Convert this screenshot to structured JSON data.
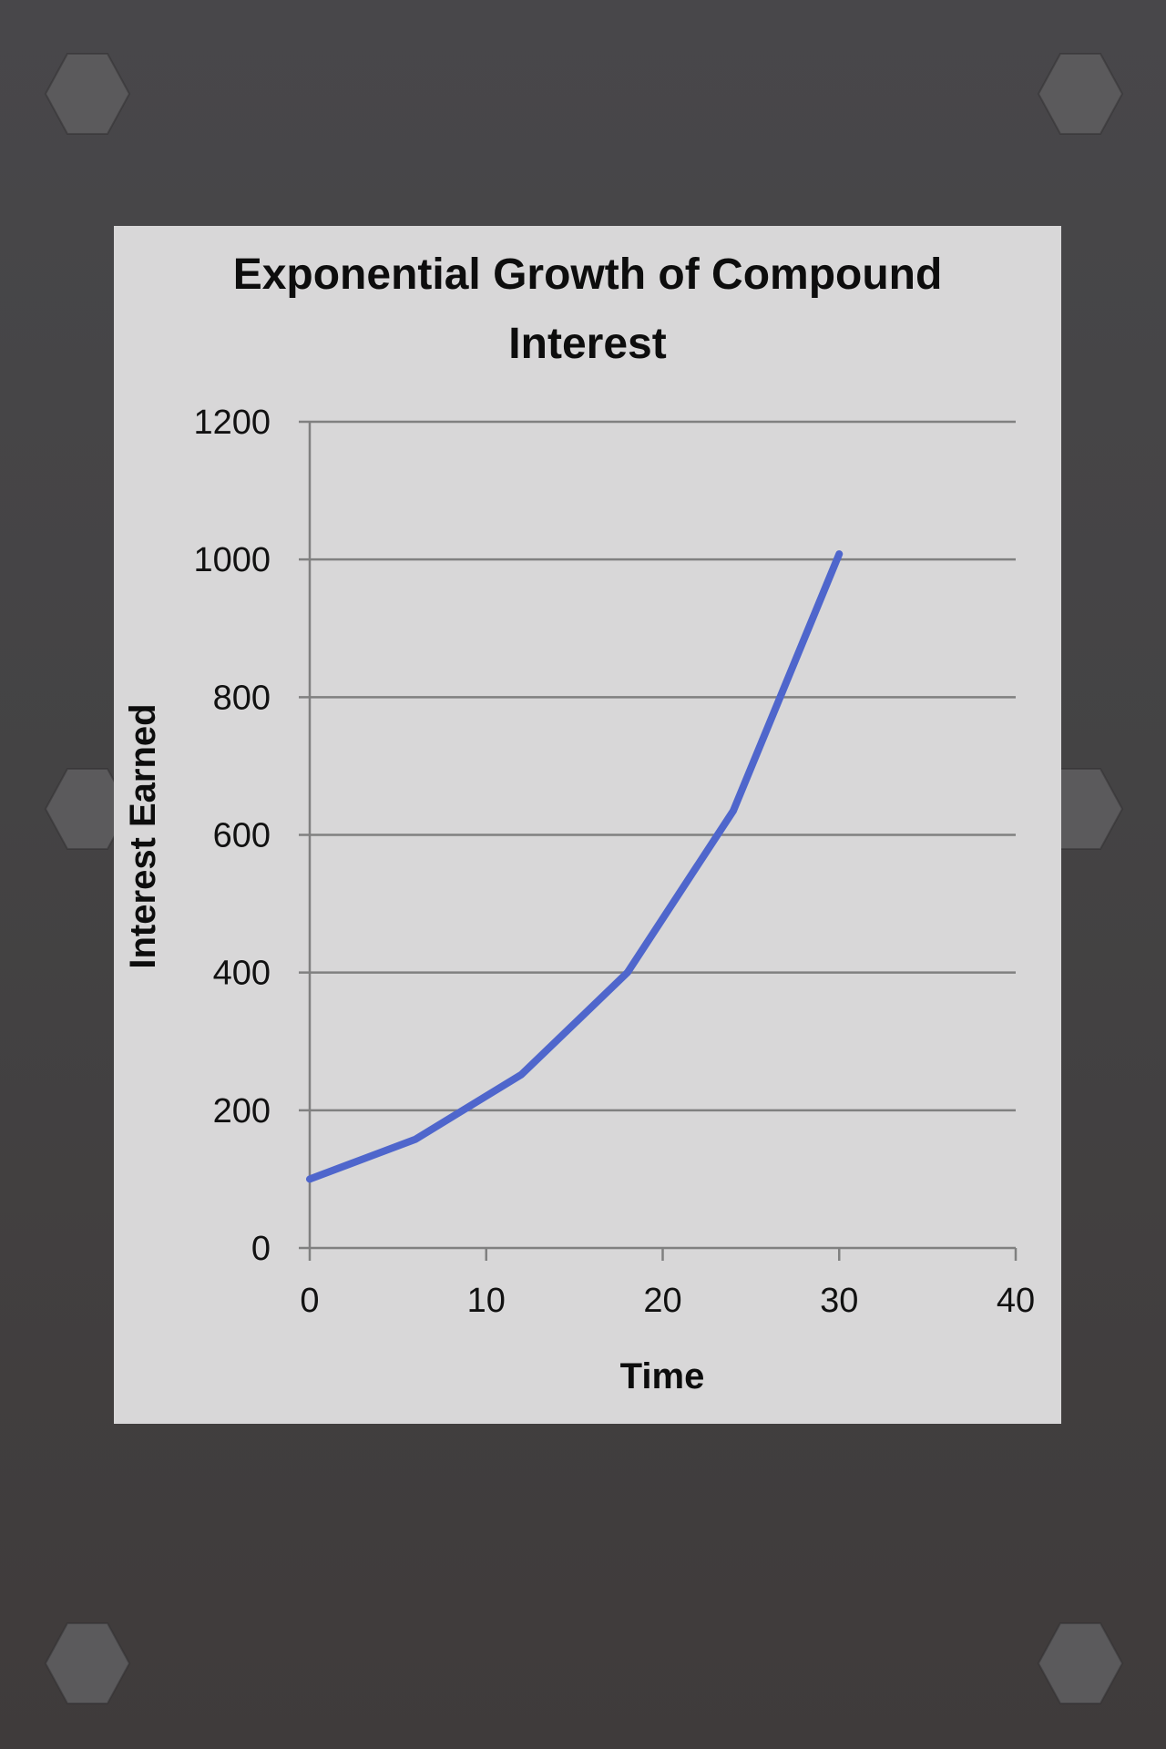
{
  "colors": {
    "background": "#454446",
    "card": "#d8d7d8",
    "series_line": "#4f66cc",
    "gridline": "#808080",
    "text": "#0d0d0d",
    "bolt": "#5b5a5c"
  },
  "decorations": {
    "bolt_icon": "hex-bolt-icon"
  },
  "chart_data": {
    "type": "line",
    "title_lines": [
      "Exponential Growth of Compound",
      "Interest"
    ],
    "xlabel": "Time",
    "ylabel": "Interest Earned",
    "xlim": [
      0,
      40
    ],
    "ylim": [
      0,
      1200
    ],
    "x_ticks": [
      "0",
      "10",
      "20",
      "30",
      "40"
    ],
    "y_ticks": [
      "0",
      "200",
      "400",
      "600",
      "800",
      "1000",
      "1200"
    ],
    "grid": true,
    "legend": false,
    "series": [
      {
        "x": [
          0,
          6,
          12,
          18,
          24,
          30
        ],
        "values": [
          100,
          158,
          252,
          400,
          635,
          1008
        ]
      }
    ]
  }
}
